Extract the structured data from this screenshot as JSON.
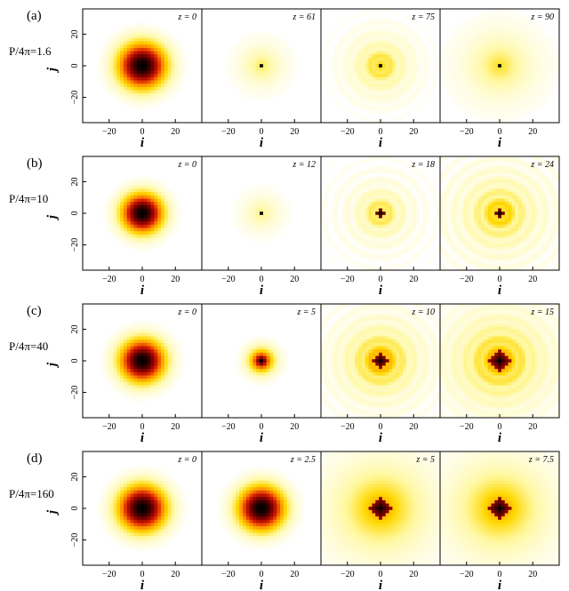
{
  "figure": {
    "axis_x_label": "i",
    "axis_y_label": "j",
    "x_ticks": [
      "−20",
      "0",
      "20"
    ],
    "y_ticks": [
      "20",
      "0",
      "−20"
    ],
    "colormap": [
      "#000000",
      "#7a0000",
      "#d81b00",
      "#ff8a00",
      "#ffd800",
      "#fff8a0",
      "#ffffff"
    ],
    "rows": [
      {
        "label": "(a)",
        "param": "P/4π=1.6",
        "panels": [
          {
            "z": "z = 0",
            "pattern": "gauss",
            "width": 14.5
          },
          {
            "z": "z = 61",
            "pattern": "dot",
            "width": 4.5,
            "halo": 0.25
          },
          {
            "z": "z = 75",
            "pattern": "dot",
            "width": 5,
            "halo": 0.3,
            "rings": 1
          },
          {
            "z": "z = 90",
            "pattern": "dot",
            "width": 7,
            "halo": 0.3
          }
        ]
      },
      {
        "label": "(b)",
        "param": "P/4π=10",
        "panels": [
          {
            "z": "z = 0",
            "pattern": "gauss",
            "width": 12.5
          },
          {
            "z": "z = 12",
            "pattern": "dot",
            "width": 4,
            "halo": 0.2
          },
          {
            "z": "z = 18",
            "pattern": "checker",
            "width": 4,
            "halo": 0.3,
            "rings": 2
          },
          {
            "z": "z = 24",
            "pattern": "core",
            "width": 6,
            "halo": 0.35,
            "rings": 4
          }
        ]
      },
      {
        "label": "(c)",
        "param": "P/4π=40",
        "panels": [
          {
            "z": "z = 0",
            "pattern": "gauss",
            "width": 13.5
          },
          {
            "z": "z = 5",
            "pattern": "blob",
            "width": 6
          },
          {
            "z": "z = 10",
            "pattern": "checker",
            "width": 6,
            "halo": 0.45,
            "rings": 3
          },
          {
            "z": "z = 15",
            "pattern": "checker",
            "width": 8,
            "halo": 0.4,
            "rings": 3
          }
        ]
      },
      {
        "label": "(d)",
        "param": "P/4π=160",
        "panels": [
          {
            "z": "z = 0",
            "pattern": "gauss",
            "width": 14.5
          },
          {
            "z": "z = 2.5",
            "pattern": "gauss",
            "width": 14
          },
          {
            "z": "z = 5",
            "pattern": "checker",
            "width": 9,
            "halo": 0.5,
            "rings": 0
          },
          {
            "z": "z = 7.5",
            "pattern": "checker",
            "width": 9,
            "halo": 0.5,
            "rings": 0
          }
        ]
      }
    ]
  }
}
